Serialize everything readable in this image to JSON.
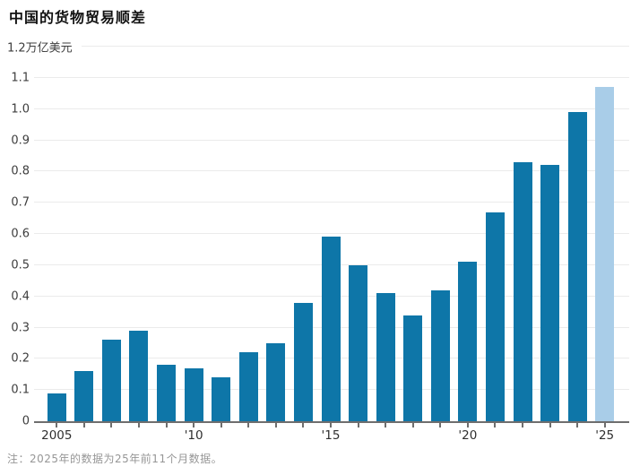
{
  "page": {
    "title": "中国的货物贸易顺差",
    "note": "注：2025年的数据为25年前11个月数据。"
  },
  "colors": {
    "bar": "#0e76a8",
    "bar_highlight": "#a9cde8",
    "gridline": "#ebebeb",
    "axis": "#6e6e6e",
    "title_text": "#111111",
    "tick_text": "#3d3d3d",
    "note_text": "#969696"
  },
  "chart_data": {
    "type": "bar",
    "title": "中国的货物贸易顺差",
    "unit_label_top": "1.2万亿美元",
    "categories": [
      2005,
      2006,
      2007,
      2008,
      2009,
      2010,
      2011,
      2012,
      2013,
      2014,
      2015,
      2016,
      2017,
      2018,
      2019,
      2020,
      2021,
      2022,
      2023,
      2024,
      2025
    ],
    "values": [
      0.09,
      0.16,
      0.26,
      0.29,
      0.18,
      0.17,
      0.14,
      0.22,
      0.25,
      0.38,
      0.59,
      0.5,
      0.41,
      0.34,
      0.42,
      0.51,
      0.67,
      0.83,
      0.82,
      0.99,
      1.07
    ],
    "highlight_indices": [
      20
    ],
    "ylim": [
      0,
      1.2
    ],
    "ytick_step": 0.1,
    "ytick_labels_bottom_up": [
      "0",
      "0.1",
      "0.2",
      "0.3",
      "0.4",
      "0.5",
      "0.6",
      "0.7",
      "0.8",
      "0.9",
      "1.0",
      "1.1",
      "1.2万亿美元"
    ],
    "xtick_labels": [
      {
        "index": 0,
        "label": "2005"
      },
      {
        "index": 5,
        "label": "'10"
      },
      {
        "index": 10,
        "label": "'15"
      },
      {
        "index": 15,
        "label": "'20"
      },
      {
        "index": 20,
        "label": "'25"
      }
    ],
    "grid": true,
    "legend": null
  }
}
